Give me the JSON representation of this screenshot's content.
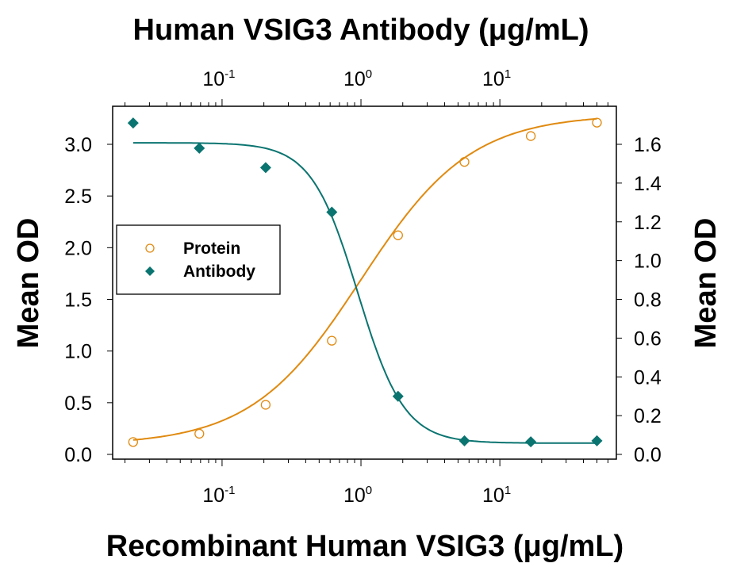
{
  "chart_data": {
    "type": "line",
    "top_title": "Human VSIG3 Antibody (μg/mL)",
    "xlabel": "Recombinant Human VSIG3 (μg/mL)",
    "ylabel_left": "Mean OD",
    "ylabel_right": "Mean OD",
    "x_scale": "log",
    "xlim": [
      0.0163,
      69
    ],
    "x_ticks": [
      {
        "value": 0.1,
        "base": "10",
        "exp": "-1"
      },
      {
        "value": 1,
        "base": "10",
        "exp": "0"
      },
      {
        "value": 10,
        "base": "10",
        "exp": "1"
      }
    ],
    "ylim_left": [
      0,
      3.0
    ],
    "y_ticks_left": [
      "0.0",
      "0.5",
      "1.0",
      "1.5",
      "2.0",
      "2.5",
      "3.0"
    ],
    "ylim_right": [
      0,
      1.6
    ],
    "y_ticks_right": [
      "0.0",
      "0.2",
      "0.4",
      "0.6",
      "0.8",
      "1.0",
      "1.2",
      "1.4",
      "1.6"
    ],
    "grid": false,
    "legend_position": "middle-left",
    "series": [
      {
        "name": "Protein",
        "axis": "left",
        "marker": "open-circle",
        "color": "#e08a10",
        "x": [
          0.0229,
          0.0686,
          0.206,
          0.617,
          1.85,
          5.56,
          16.7,
          50
        ],
        "values": [
          0.12,
          0.2,
          0.48,
          1.1,
          2.12,
          2.83,
          3.08,
          3.21
        ],
        "fit": {
          "bottom": 0.09,
          "top": 3.29,
          "ec50": 1.0,
          "hill": 1.1
        }
      },
      {
        "name": "Antibody",
        "axis": "right",
        "marker": "filled-diamond",
        "color": "#0a7470",
        "x": [
          0.0229,
          0.0686,
          0.206,
          0.617,
          1.85,
          5.56,
          16.7,
          50
        ],
        "values": [
          1.71,
          1.58,
          1.48,
          1.25,
          0.3,
          0.07,
          0.065,
          0.07
        ],
        "fit": {
          "bottom": 0.058,
          "top": 1.608,
          "ec50": 0.95,
          "hill": 2.6
        }
      }
    ]
  }
}
